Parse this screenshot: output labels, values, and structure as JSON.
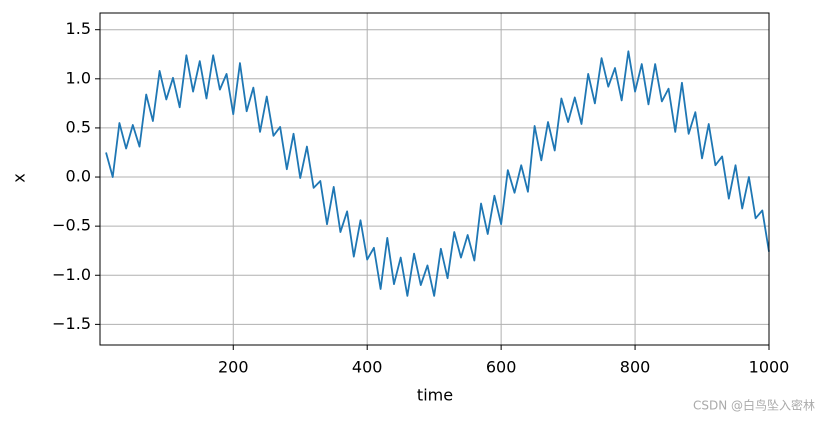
{
  "chart_data": {
    "type": "line",
    "xlabel": "time",
    "ylabel": "x",
    "x": [
      10,
      20,
      30,
      40,
      50,
      60,
      70,
      80,
      90,
      100,
      110,
      120,
      130,
      140,
      150,
      160,
      170,
      180,
      190,
      200,
      210,
      220,
      230,
      240,
      250,
      260,
      270,
      280,
      290,
      300,
      310,
      320,
      330,
      340,
      350,
      360,
      370,
      380,
      390,
      400,
      410,
      420,
      430,
      440,
      450,
      460,
      470,
      480,
      490,
      500,
      510,
      520,
      530,
      540,
      550,
      560,
      570,
      580,
      590,
      600,
      610,
      620,
      630,
      640,
      650,
      660,
      670,
      680,
      690,
      700,
      710,
      720,
      730,
      740,
      750,
      760,
      770,
      780,
      790,
      800,
      810,
      820,
      830,
      840,
      850,
      860,
      870,
      880,
      890,
      900,
      910,
      920,
      930,
      940,
      950,
      960,
      970,
      980,
      990,
      1000
    ],
    "values": [
      0.25,
      0.0,
      0.55,
      0.29,
      0.53,
      0.31,
      0.84,
      0.57,
      1.08,
      0.79,
      1.01,
      0.71,
      1.24,
      0.87,
      1.18,
      0.8,
      1.24,
      0.89,
      1.05,
      0.64,
      1.16,
      0.67,
      0.91,
      0.46,
      0.82,
      0.42,
      0.51,
      0.08,
      0.44,
      -0.01,
      0.31,
      -0.11,
      -0.04,
      -0.48,
      -0.1,
      -0.56,
      -0.35,
      -0.81,
      -0.44,
      -0.84,
      -0.72,
      -1.14,
      -0.62,
      -1.09,
      -0.82,
      -1.21,
      -0.78,
      -1.1,
      -0.9,
      -1.21,
      -0.73,
      -1.03,
      -0.56,
      -0.82,
      -0.59,
      -0.85,
      -0.27,
      -0.58,
      -0.19,
      -0.48,
      0.07,
      -0.16,
      0.12,
      -0.15,
      0.52,
      0.17,
      0.56,
      0.27,
      0.8,
      0.56,
      0.81,
      0.54,
      1.05,
      0.75,
      1.21,
      0.92,
      1.11,
      0.78,
      1.28,
      0.87,
      1.15,
      0.74,
      1.15,
      0.77,
      0.9,
      0.46,
      0.96,
      0.44,
      0.66,
      0.19,
      0.54,
      0.12,
      0.21,
      -0.22,
      0.12,
      -0.32,
      0.0,
      -0.42,
      -0.34,
      -0.76
    ],
    "color": "#1f77b4",
    "xlim": [
      1,
      1000
    ],
    "ylim": [
      -1.71,
      1.67
    ],
    "xticks": [
      200,
      400,
      600,
      800,
      1000
    ],
    "yticks": [
      {
        "value": -1.5,
        "label": "−1.5"
      },
      {
        "value": -1.0,
        "label": "−1.0"
      },
      {
        "value": -0.5,
        "label": "−0.5"
      },
      {
        "value": 0,
        "label": "0.0"
      },
      {
        "value": 0.5,
        "label": "0.5"
      },
      {
        "value": 1.0,
        "label": "1.0"
      },
      {
        "value": 1.5,
        "label": "1.5"
      }
    ],
    "grid": true,
    "watermark": "CSDN @白鸟坠入密林"
  }
}
